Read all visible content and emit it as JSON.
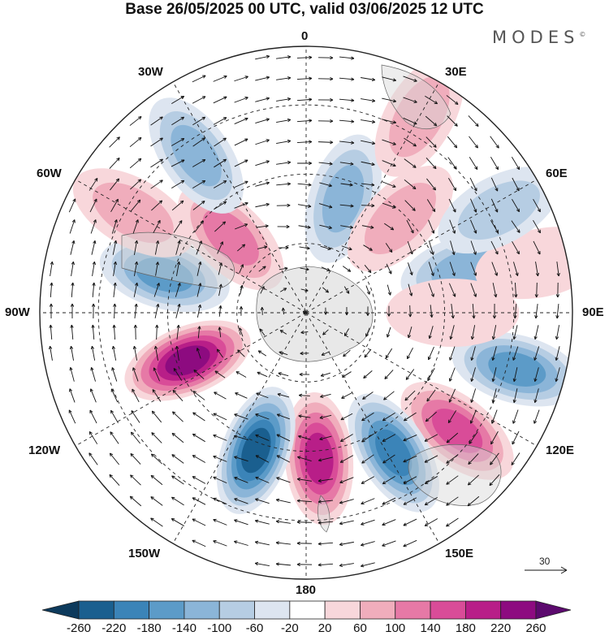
{
  "title": "Base 26/05/2025 00 UTC, valid 03/06/2025 12 UTC",
  "brand": "MODES",
  "brand_mark": "©",
  "longitude_labels": {
    "top": "0",
    "lon_30e": "30E",
    "lon_60e": "60E",
    "lon_90e": "90E",
    "lon_120e": "120E",
    "lon_150e": "150E",
    "bottom": "180",
    "lon_150w": "150W",
    "lon_120w": "120W",
    "lon_90w": "90W",
    "lon_60w": "60W",
    "lon_30w": "30W"
  },
  "reference_vector": {
    "label": "30"
  },
  "colorbar": {
    "colors": [
      "#0d3a5c",
      "#1a5f8f",
      "#3b84b8",
      "#5c9bc8",
      "#8bb5d8",
      "#b6cde3",
      "#dde5f0",
      "#ffffff",
      "#f8d7db",
      "#f0adbc",
      "#e679a6",
      "#d94c98",
      "#b81e88",
      "#8d0b80",
      "#5c0a6e"
    ],
    "labels": [
      "-260",
      "-220",
      "-180",
      "-140",
      "-100",
      "-60",
      "-20",
      "20",
      "60",
      "100",
      "140",
      "180",
      "220",
      "260"
    ]
  },
  "anomalies": [
    {
      "lon": 75,
      "r": 0.62,
      "value": -120
    },
    {
      "lon": 128,
      "r": 0.72,
      "value": 160
    },
    {
      "lon": 105,
      "r": 0.82,
      "value": -160
    },
    {
      "lon": 90,
      "r": 0.55,
      "value": 60
    },
    {
      "lon": 175,
      "r": 0.55,
      "value": 220
    },
    {
      "lon": 148,
      "r": 0.62,
      "value": -200
    },
    {
      "lon": -160,
      "r": 0.55,
      "value": -240
    },
    {
      "lon": -112,
      "r": 0.48,
      "value": 260
    },
    {
      "lon": -75,
      "r": 0.55,
      "value": -160
    },
    {
      "lon": -45,
      "r": 0.4,
      "value": 140
    },
    {
      "lon": -35,
      "r": 0.72,
      "value": -120
    },
    {
      "lon": -60,
      "r": 0.75,
      "value": 80
    },
    {
      "lon": 18,
      "r": 0.45,
      "value": -120
    },
    {
      "lon": 45,
      "r": 0.5,
      "value": 100
    },
    {
      "lon": 30,
      "r": 0.85,
      "value": 80
    },
    {
      "lon": 78,
      "r": 0.9,
      "value": 60
    },
    {
      "lon": 62,
      "r": 0.82,
      "value": -100
    }
  ]
}
